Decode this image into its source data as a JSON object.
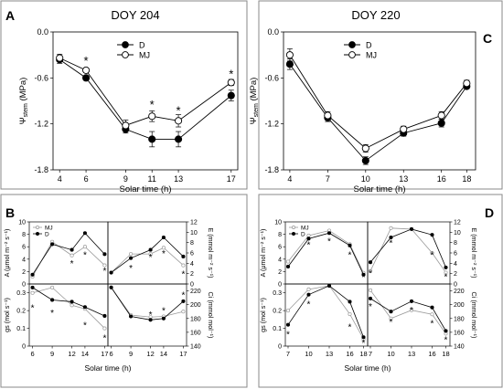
{
  "panels": [
    {
      "letter": "A",
      "title": "DOY 204"
    },
    {
      "letter": "C",
      "title": "DOY 220"
    },
    {
      "letter": "B"
    },
    {
      "letter": "D"
    }
  ],
  "chart_data": [
    {
      "id": "A",
      "type": "line",
      "title": "DOY 204",
      "xlabel": "Solar time (h)",
      "ylabel": "Ψstem (MPa)",
      "ylabel_main": "Ψ",
      "ylabel_sub": "stem",
      "ylabel_rest": " (MPa)",
      "xlim": [
        3.5,
        17.5
      ],
      "ylim": [
        -1.8,
        0.0
      ],
      "xticks": [
        4,
        6,
        9,
        11,
        13,
        17
      ],
      "yticks": [
        0.0,
        -0.6,
        -1.2,
        -1.8
      ],
      "ytick_labels": [
        "0.0",
        "-0.6",
        "-1.2",
        "-1.8"
      ],
      "legend_position": "top-left",
      "series": [
        {
          "name": "D",
          "marker": "filled",
          "x": [
            4,
            6,
            9,
            11,
            13,
            17
          ],
          "y": [
            -0.36,
            -0.6,
            -1.27,
            -1.4,
            -1.4,
            -0.83
          ],
          "err": [
            0.05,
            0.03,
            0.05,
            0.1,
            0.1,
            0.07
          ]
        },
        {
          "name": "MJ",
          "marker": "open",
          "x": [
            4,
            6,
            9,
            11,
            13,
            17
          ],
          "y": [
            -0.34,
            -0.5,
            -1.22,
            -1.1,
            -1.16,
            -0.66
          ],
          "err": [
            0.05,
            0.03,
            0.07,
            0.07,
            0.08,
            0.04
          ]
        }
      ],
      "annotations": [
        {
          "x": 6,
          "y": -0.36,
          "text": "*"
        },
        {
          "x": 11,
          "y": -0.93,
          "text": "*"
        },
        {
          "x": 13,
          "y": -1.01,
          "text": "*"
        },
        {
          "x": 17,
          "y": -0.53,
          "text": "*"
        }
      ]
    },
    {
      "id": "C",
      "type": "line",
      "title": "DOY 220",
      "xlabel": "Solar time (h)",
      "ylabel": "Ψstem (MPa)",
      "ylabel_main": "Ψ",
      "ylabel_sub": "stem",
      "ylabel_rest": " (MPa)",
      "xlim": [
        3.5,
        18.7
      ],
      "ylim": [
        -1.8,
        0.0
      ],
      "xticks": [
        4,
        7,
        10,
        13,
        16,
        18
      ],
      "yticks": [
        0.0,
        -0.6,
        -1.2,
        -1.8
      ],
      "ytick_labels": [
        "0.0",
        "-0.6",
        "-1.2",
        "-1.8"
      ],
      "legend_position": "top-right",
      "series": [
        {
          "name": "D",
          "marker": "filled",
          "x": [
            4,
            7,
            10,
            13,
            16,
            18
          ],
          "y": [
            -0.42,
            -1.12,
            -1.68,
            -1.32,
            -1.19,
            -0.71
          ],
          "err": [
            0.07,
            0.05,
            0.05,
            0.04,
            0.05,
            0.03
          ]
        },
        {
          "name": "MJ",
          "marker": "open",
          "x": [
            4,
            7,
            10,
            13,
            16,
            18
          ],
          "y": [
            -0.3,
            -1.09,
            -1.52,
            -1.27,
            -1.09,
            -0.67
          ],
          "err": [
            0.08,
            0.05,
            0.05,
            0.04,
            0.05,
            0.04
          ]
        }
      ]
    },
    {
      "id": "B",
      "type": "line",
      "xlabel": "Solar time (h)",
      "legend": [
        "MJ",
        "D"
      ],
      "legend_position": "top-left",
      "subplots": [
        {
          "id": "B-A",
          "ylabel": "A (μmol m⁻² s⁻¹)",
          "ylim": [
            0,
            10
          ],
          "yticks": [
            0,
            2,
            4,
            6,
            8,
            10
          ],
          "x": [
            6,
            9,
            12,
            14,
            17
          ],
          "xlim": [
            5.5,
            17.5
          ],
          "series": [
            {
              "name": "MJ",
              "values": [
                1.2,
                6.8,
                4.6,
                6.0,
                3.0
              ]
            },
            {
              "name": "D",
              "values": [
                1.5,
                6.4,
                5.5,
                8.2,
                4.8
              ]
            }
          ],
          "stars": [
            {
              "x": 12,
              "y": 3.4
            },
            {
              "x": 14,
              "y": 4.8
            },
            {
              "x": 17,
              "y": 2.2
            }
          ]
        },
        {
          "id": "B-E",
          "ylabel": "E (mmol m⁻² s⁻¹)",
          "ylim": [
            0,
            12
          ],
          "yticks": [
            0,
            2,
            4,
            6,
            8,
            10,
            12
          ],
          "x": [
            6,
            9,
            12,
            14,
            17
          ],
          "xlim": [
            5.5,
            17.5
          ],
          "series": [
            {
              "name": "MJ",
              "values": [
                2.2,
                5.8,
                5.8,
                7.0,
                3.6
              ]
            },
            {
              "name": "D",
              "values": [
                2.2,
                5.0,
                6.6,
                9.0,
                5.3
              ]
            }
          ],
          "stars": [
            {
              "x": 9,
              "y": 3.2
            },
            {
              "x": 12,
              "y": 5.3
            },
            {
              "x": 14,
              "y": 6.0
            },
            {
              "x": 17,
              "y": 2.0
            }
          ]
        },
        {
          "id": "B-gs",
          "ylabel": "gs (mol s⁻¹)",
          "ylim": [
            0,
            0.35
          ],
          "yticks": [
            0,
            0.1,
            0.2,
            0.3
          ],
          "ytick_labels": [
            "0",
            "0.1",
            "0.2",
            "0.3"
          ],
          "x": [
            6,
            9,
            12,
            14,
            17
          ],
          "xlim": [
            5.5,
            17.5
          ],
          "series": [
            {
              "name": "MJ",
              "values": [
                0.3,
                0.33,
                0.23,
                0.21,
                0.1
              ]
            },
            {
              "name": "D",
              "values": [
                0.33,
                0.26,
                0.25,
                0.22,
                0.17
              ]
            }
          ],
          "stars": [
            {
              "x": 6,
              "y": 0.22
            },
            {
              "x": 9,
              "y": 0.19
            },
            {
              "x": 14,
              "y": 0.12
            },
            {
              "x": 17,
              "y": 0.05
            }
          ]
        },
        {
          "id": "B-Ci",
          "ylabel": "Ci (mmol mol⁻¹)",
          "ylim": [
            140,
            230
          ],
          "yticks": [
            140,
            160,
            180,
            200,
            220
          ],
          "x": [
            6,
            9,
            12,
            14,
            17
          ],
          "xlim": [
            5.5,
            17.5
          ],
          "series": [
            {
              "name": "MJ",
              "values": [
                225,
                185,
                182,
                183,
                190
              ]
            },
            {
              "name": "D",
              "values": [
                225,
                183,
                178,
                180,
                205
              ]
            }
          ],
          "stars": [
            {
              "x": 12,
              "y": 186
            },
            {
              "x": 14,
              "y": 192
            },
            {
              "x": 17,
              "y": 215
            }
          ]
        }
      ]
    },
    {
      "id": "D",
      "type": "line",
      "xlabel": "Solar time (h)",
      "legend": [
        "MJ",
        "D"
      ],
      "legend_position": "top-left",
      "subplots": [
        {
          "id": "D-A",
          "ylabel": "A (μmol m⁻² s⁻¹)",
          "ylim": [
            0,
            10
          ],
          "yticks": [
            0,
            2,
            4,
            6,
            8,
            10
          ],
          "x": [
            7,
            10,
            13,
            16,
            18
          ],
          "xlim": [
            6.6,
            18.6
          ],
          "series": [
            {
              "name": "MJ",
              "values": [
                3.6,
                7.8,
                8.6,
                6.4,
                1.8
              ]
            },
            {
              "name": "D",
              "values": [
                2.8,
                7.3,
                8.2,
                6.2,
                1.5
              ]
            }
          ],
          "stars": [
            {
              "x": 10,
              "y": 6.4
            },
            {
              "x": 13,
              "y": 7.0
            },
            {
              "x": 16,
              "y": 4.8
            },
            {
              "x": 18,
              "y": 1.2
            }
          ]
        },
        {
          "id": "D-E",
          "ylabel": "E (mmol m⁻² s⁻¹)",
          "ylim": [
            0,
            12
          ],
          "yticks": [
            0,
            2,
            4,
            6,
            8,
            10,
            12
          ],
          "x": [
            7,
            10,
            13,
            16,
            18
          ],
          "xlim": [
            6.6,
            18.6
          ],
          "series": [
            {
              "name": "MJ",
              "values": [
                2.5,
                10.8,
                10.6,
                6.0,
                2.2
              ]
            },
            {
              "name": "D",
              "values": [
                4.2,
                9.0,
                10.6,
                9.5,
                3.2
              ]
            }
          ],
          "stars": [
            {
              "x": 7,
              "y": 2.2
            },
            {
              "x": 10,
              "y": 8.0
            },
            {
              "x": 16,
              "y": 5.7
            },
            {
              "x": 18,
              "y": 1.5
            }
          ]
        },
        {
          "id": "D-gs",
          "ylabel": "gs (mol s⁻¹)",
          "ylim": [
            0,
            0.35
          ],
          "yticks": [
            0,
            0.1,
            0.2,
            0.3
          ],
          "ytick_labels": [
            "0",
            "0.1",
            "0.2",
            "0.3"
          ],
          "x": [
            7,
            10,
            13,
            16,
            18
          ],
          "xlim": [
            6.6,
            18.6
          ],
          "series": [
            {
              "name": "MJ",
              "values": [
                0.2,
                0.32,
                0.34,
                0.18,
                0.04
              ]
            },
            {
              "name": "D",
              "values": [
                0.12,
                0.29,
                0.34,
                0.25,
                0.05
              ]
            }
          ],
          "stars": [
            {
              "x": 7,
              "y": 0.07
            },
            {
              "x": 10,
              "y": 0.24
            },
            {
              "x": 16,
              "y": 0.11
            },
            {
              "x": 18,
              "y": 0.02
            }
          ]
        },
        {
          "id": "D-Ci",
          "ylabel": "Ci (mmol mol⁻¹)",
          "ylim": [
            140,
            230
          ],
          "yticks": [
            140,
            160,
            180,
            200,
            220
          ],
          "x": [
            7,
            10,
            13,
            16,
            18
          ],
          "xlim": [
            6.6,
            18.6
          ],
          "series": [
            {
              "name": "MJ",
              "values": [
                221,
                180,
                192,
                186,
                158
              ]
            },
            {
              "name": "D",
              "values": [
                209,
                190,
                205,
                196,
                162
              ]
            }
          ],
          "stars": [
            {
              "x": 7,
              "y": 198
            },
            {
              "x": 10,
              "y": 176
            },
            {
              "x": 13,
              "y": 193
            },
            {
              "x": 16,
              "y": 174
            },
            {
              "x": 18,
              "y": 150
            }
          ]
        }
      ]
    }
  ]
}
